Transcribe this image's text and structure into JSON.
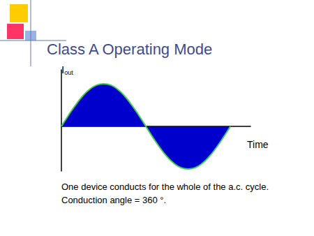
{
  "chart_data": {
    "type": "line",
    "title": "Class A Operating Mode",
    "ylabel": {
      "text": "I",
      "subscript": "out"
    },
    "xlabel": "Time",
    "annotations": [
      "One device conducts for the whole of the a.c. cycle.",
      "Conduction angle = 360 °."
    ],
    "x": [
      0,
      15,
      30,
      45,
      60,
      75,
      90,
      105,
      120,
      135,
      150,
      165,
      180,
      195,
      210,
      225,
      240,
      255,
      270,
      285,
      300,
      315,
      330,
      345,
      360
    ],
    "values": [
      0,
      0.26,
      0.5,
      0.71,
      0.87,
      0.97,
      1,
      0.97,
      0.87,
      0.71,
      0.5,
      0.26,
      0,
      -0.26,
      -0.5,
      -0.71,
      -0.87,
      -0.97,
      -1,
      -0.97,
      -0.87,
      -0.71,
      -0.5,
      -0.26,
      0
    ],
    "color": "#0000cc",
    "xlim": [
      0,
      403
    ],
    "ylim": [
      -1.05,
      1.33
    ],
    "grid": false,
    "tick_labels": false
  }
}
